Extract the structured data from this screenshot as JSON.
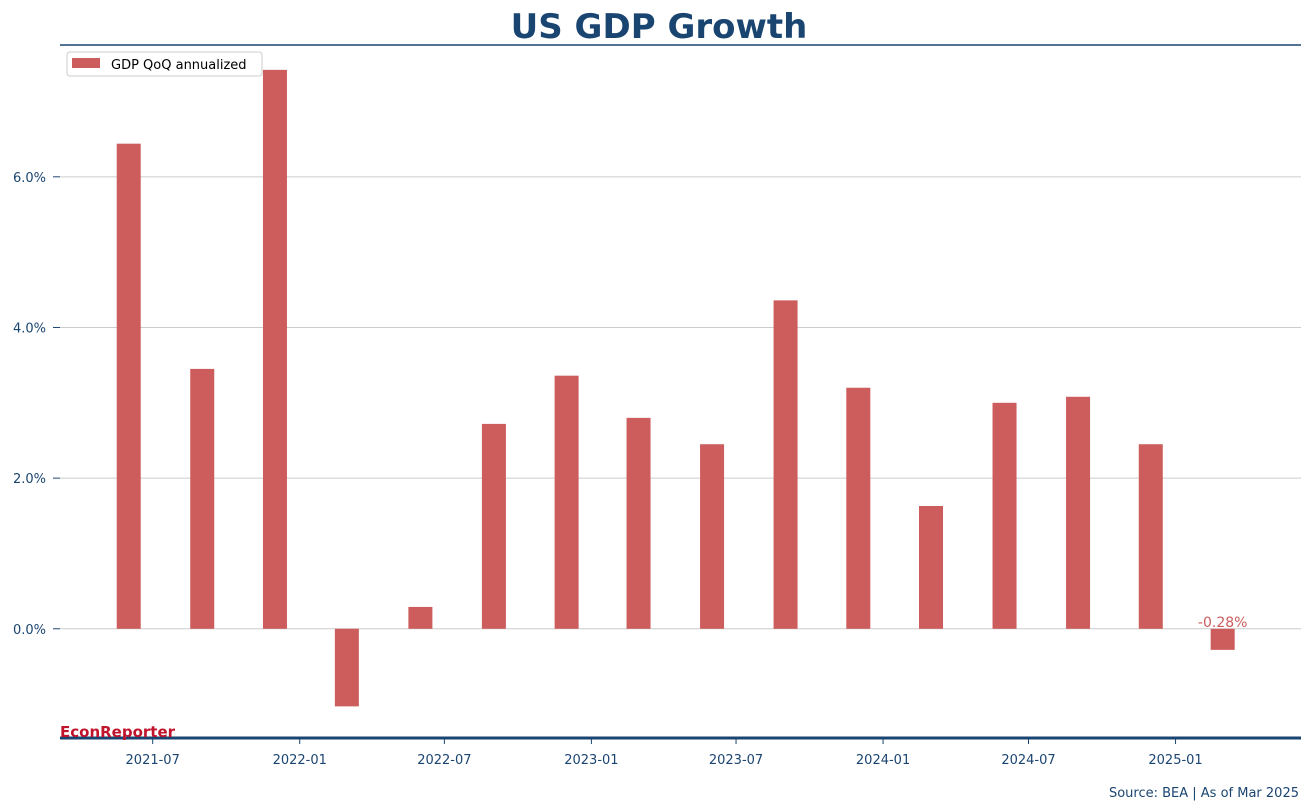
{
  "chart_data": {
    "type": "bar",
    "title": "US GDP Growth",
    "xlabel": "",
    "ylabel": "",
    "series": [
      {
        "name": "GDP QoQ annualized",
        "color": "#cd5c5c",
        "dates": [
          "2021-06-01",
          "2021-09-01",
          "2021-12-01",
          "2022-03-01",
          "2022-06-01",
          "2022-09-01",
          "2022-12-01",
          "2023-03-01",
          "2023-06-01",
          "2023-09-01",
          "2023-12-01",
          "2024-03-01",
          "2024-06-01",
          "2024-09-01",
          "2024-12-01",
          "2025-03-01"
        ],
        "values": [
          6.44,
          3.45,
          7.42,
          -1.03,
          0.29,
          2.72,
          3.36,
          2.8,
          2.45,
          4.36,
          3.2,
          1.63,
          3.0,
          3.08,
          2.45,
          -0.28
        ]
      }
    ],
    "x_ticks": [
      "2021-07",
      "2022-01",
      "2022-07",
      "2023-01",
      "2023-07",
      "2024-01",
      "2024-07",
      "2025-01"
    ],
    "y_ticks": [
      "0.0%",
      "2.0%",
      "4.0%",
      "6.0%"
    ],
    "y_tick_values": [
      0,
      2,
      4,
      6
    ],
    "xlim": [
      "2021-03-07",
      "2025-06-07"
    ],
    "ylim": [
      -1.45,
      7.75
    ],
    "grid": "horizontal",
    "legend": "top-left",
    "annotations": [
      {
        "text": "-0.28%",
        "date": "2025-03-01",
        "value": -0.28
      }
    ],
    "brand": "EconReporter",
    "source": "Source: BEA | As of Mar 2025",
    "colors": {
      "bar": "#cd5c5c",
      "title": "#1b4571",
      "axis": "#1b4571",
      "brand": "#c0142c",
      "grid": "#cccccc"
    }
  }
}
